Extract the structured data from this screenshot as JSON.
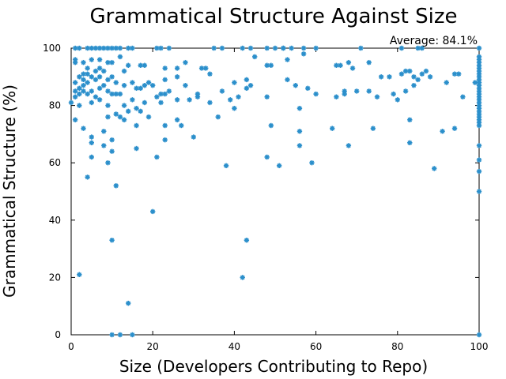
{
  "chart_data": {
    "type": "scatter",
    "title": "Grammatical Structure Against Size",
    "xlabel": "Size (Developers Contributing to Repo)",
    "ylabel": "Grammatical Structure (%)",
    "xlim": [
      0,
      100
    ],
    "ylim": [
      0,
      100
    ],
    "xticks": [
      0,
      20,
      40,
      60,
      80,
      100
    ],
    "yticks": [
      0,
      20,
      40,
      60,
      80,
      100
    ],
    "grid": false,
    "legend": "none",
    "annotation": "Average: 84.1%",
    "marker_color": "#2b8fcb",
    "series": [
      {
        "points": [
          [
            0,
            81
          ],
          [
            1,
            100
          ],
          [
            1,
            96
          ],
          [
            1,
            95
          ],
          [
            1,
            88
          ],
          [
            1,
            85
          ],
          [
            1,
            83
          ],
          [
            1,
            75
          ],
          [
            2,
            100
          ],
          [
            2,
            90
          ],
          [
            2,
            86
          ],
          [
            2,
            84
          ],
          [
            2,
            80
          ],
          [
            2,
            21
          ],
          [
            3,
            95
          ],
          [
            3,
            91
          ],
          [
            3,
            89
          ],
          [
            3,
            87
          ],
          [
            3,
            85
          ],
          [
            3,
            72
          ],
          [
            4,
            100
          ],
          [
            4,
            93
          ],
          [
            4,
            91
          ],
          [
            4,
            88
          ],
          [
            4,
            84
          ],
          [
            4,
            55
          ],
          [
            5,
            100
          ],
          [
            5,
            96
          ],
          [
            5,
            90
          ],
          [
            5,
            85
          ],
          [
            5,
            81
          ],
          [
            5,
            69
          ],
          [
            5,
            67
          ],
          [
            5,
            62
          ],
          [
            6,
            100
          ],
          [
            6,
            92
          ],
          [
            6,
            89
          ],
          [
            6,
            83
          ],
          [
            7,
            100
          ],
          [
            7,
            96
          ],
          [
            7,
            93
          ],
          [
            7,
            90
          ],
          [
            7,
            86
          ],
          [
            7,
            82
          ],
          [
            8,
            100
          ],
          [
            8,
            92
          ],
          [
            8,
            87
          ],
          [
            8,
            71
          ],
          [
            8,
            66
          ],
          [
            9,
            100
          ],
          [
            9,
            95
          ],
          [
            9,
            89
          ],
          [
            9,
            85
          ],
          [
            9,
            80
          ],
          [
            9,
            76
          ],
          [
            9,
            60
          ],
          [
            10,
            100
          ],
          [
            10,
            95
          ],
          [
            10,
            90
          ],
          [
            10,
            84
          ],
          [
            10,
            68
          ],
          [
            10,
            64
          ],
          [
            10,
            33
          ],
          [
            10,
            0
          ],
          [
            11,
            100
          ],
          [
            11,
            88
          ],
          [
            11,
            84
          ],
          [
            11,
            77
          ],
          [
            11,
            52
          ],
          [
            12,
            100
          ],
          [
            12,
            97
          ],
          [
            12,
            84
          ],
          [
            12,
            76
          ],
          [
            12,
            0
          ],
          [
            13,
            92
          ],
          [
            13,
            87
          ],
          [
            13,
            80
          ],
          [
            13,
            75
          ],
          [
            14,
            100
          ],
          [
            14,
            94
          ],
          [
            14,
            78
          ],
          [
            14,
            11
          ],
          [
            15,
            100
          ],
          [
            15,
            88
          ],
          [
            15,
            82
          ],
          [
            15,
            0
          ],
          [
            16,
            86
          ],
          [
            16,
            79
          ],
          [
            16,
            73
          ],
          [
            16,
            65
          ],
          [
            17,
            94
          ],
          [
            17,
            86
          ],
          [
            17,
            78
          ],
          [
            18,
            94
          ],
          [
            18,
            87
          ],
          [
            18,
            81
          ],
          [
            19,
            88
          ],
          [
            19,
            76
          ],
          [
            20,
            87
          ],
          [
            20,
            43
          ],
          [
            21,
            100
          ],
          [
            21,
            83
          ],
          [
            21,
            62
          ],
          [
            22,
            100
          ],
          [
            22,
            84
          ],
          [
            22,
            81
          ],
          [
            23,
            93
          ],
          [
            23,
            89
          ],
          [
            23,
            84
          ],
          [
            23,
            73
          ],
          [
            23,
            68
          ],
          [
            24,
            100
          ],
          [
            24,
            85
          ],
          [
            26,
            93
          ],
          [
            26,
            90
          ],
          [
            26,
            82
          ],
          [
            26,
            75
          ],
          [
            27,
            73
          ],
          [
            28,
            95
          ],
          [
            28,
            87
          ],
          [
            29,
            82
          ],
          [
            30,
            69
          ],
          [
            31,
            84
          ],
          [
            31,
            83
          ],
          [
            32,
            93
          ],
          [
            33,
            93
          ],
          [
            34,
            91
          ],
          [
            34,
            81
          ],
          [
            35,
            100
          ],
          [
            36,
            76
          ],
          [
            37,
            100
          ],
          [
            37,
            85
          ],
          [
            38,
            59
          ],
          [
            39,
            82
          ],
          [
            40,
            88
          ],
          [
            40,
            79
          ],
          [
            41,
            83
          ],
          [
            42,
            100
          ],
          [
            42,
            20
          ],
          [
            43,
            89
          ],
          [
            43,
            86
          ],
          [
            43,
            33
          ],
          [
            44,
            100
          ],
          [
            44,
            87
          ],
          [
            45,
            97
          ],
          [
            48,
            100
          ],
          [
            48,
            94
          ],
          [
            48,
            83
          ],
          [
            48,
            62
          ],
          [
            49,
            94
          ],
          [
            49,
            73
          ],
          [
            50,
            100
          ],
          [
            51,
            59
          ],
          [
            52,
            100
          ],
          [
            52,
            100
          ],
          [
            53,
            96
          ],
          [
            53,
            89
          ],
          [
            54,
            100
          ],
          [
            55,
            87
          ],
          [
            56,
            79
          ],
          [
            56,
            71
          ],
          [
            56,
            66
          ],
          [
            57,
            98
          ],
          [
            57,
            100
          ],
          [
            58,
            86
          ],
          [
            59,
            60
          ],
          [
            60,
            100
          ],
          [
            60,
            84
          ],
          [
            64,
            72
          ],
          [
            65,
            94
          ],
          [
            65,
            83
          ],
          [
            66,
            94
          ],
          [
            67,
            84
          ],
          [
            67,
            85
          ],
          [
            68,
            95
          ],
          [
            68,
            66
          ],
          [
            69,
            93
          ],
          [
            70,
            85
          ],
          [
            71,
            100
          ],
          [
            73,
            95
          ],
          [
            73,
            85
          ],
          [
            74,
            72
          ],
          [
            75,
            83
          ],
          [
            76,
            90
          ],
          [
            78,
            90
          ],
          [
            79,
            84
          ],
          [
            80,
            82
          ],
          [
            81,
            100
          ],
          [
            81,
            91
          ],
          [
            82,
            92
          ],
          [
            82,
            85
          ],
          [
            83,
            92
          ],
          [
            83,
            75
          ],
          [
            83,
            67
          ],
          [
            84,
            90
          ],
          [
            84,
            87
          ],
          [
            85,
            100
          ],
          [
            85,
            89
          ],
          [
            86,
            100
          ],
          [
            86,
            91
          ],
          [
            87,
            92
          ],
          [
            88,
            90
          ],
          [
            89,
            58
          ],
          [
            91,
            71
          ],
          [
            92,
            88
          ],
          [
            94,
            72
          ],
          [
            94,
            91
          ],
          [
            95,
            91
          ],
          [
            96,
            83
          ],
          [
            99,
            88
          ],
          [
            100,
            100
          ],
          [
            100,
            97
          ],
          [
            100,
            96
          ],
          [
            100,
            95
          ],
          [
            100,
            94
          ],
          [
            100,
            93
          ],
          [
            100,
            92
          ],
          [
            100,
            91
          ],
          [
            100,
            90
          ],
          [
            100,
            89
          ],
          [
            100,
            88
          ],
          [
            100,
            87
          ],
          [
            100,
            86
          ],
          [
            100,
            85
          ],
          [
            100,
            84
          ],
          [
            100,
            83
          ],
          [
            100,
            82
          ],
          [
            100,
            81
          ],
          [
            100,
            80
          ],
          [
            100,
            79
          ],
          [
            100,
            78
          ],
          [
            100,
            77
          ],
          [
            100,
            76
          ],
          [
            100,
            75
          ],
          [
            100,
            74
          ],
          [
            100,
            73
          ],
          [
            100,
            66
          ],
          [
            100,
            61
          ],
          [
            100,
            57
          ],
          [
            100,
            50
          ],
          [
            100,
            0
          ]
        ]
      }
    ]
  }
}
